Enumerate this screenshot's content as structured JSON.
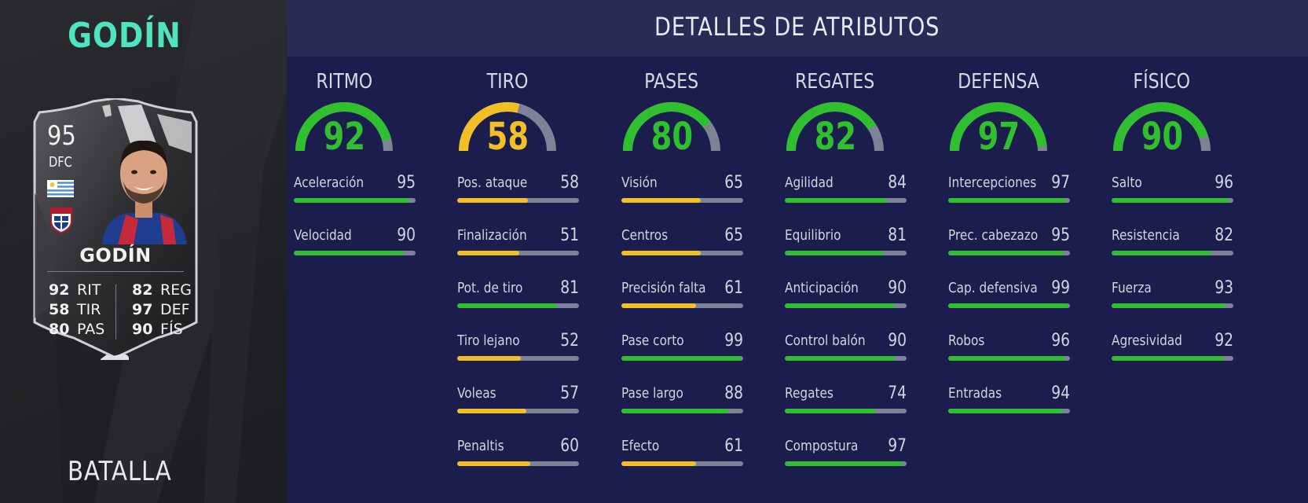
{
  "player": {
    "name": "GODÍN",
    "version": "BATALLA"
  },
  "card": {
    "rating": "95",
    "position": "DFC",
    "name": "GODÍN",
    "stats_left": [
      {
        "value": "92",
        "label": "RIT"
      },
      {
        "value": "58",
        "label": "TIR"
      },
      {
        "value": "80",
        "label": "PAS"
      }
    ],
    "stats_right": [
      {
        "value": "82",
        "label": "REG"
      },
      {
        "value": "97",
        "label": "DEF"
      },
      {
        "value": "90",
        "label": "FÍS"
      }
    ]
  },
  "header": {
    "title": "DETALLES DE ATRIBUTOS"
  },
  "colors": {
    "high": "#2fbf2f",
    "mid": "#f2c026",
    "track": "#7d8296",
    "accent": "#4fe3c0"
  },
  "categories": [
    {
      "name": "RITMO",
      "value": 92,
      "attributes": [
        {
          "label": "Aceleración",
          "value": 95
        },
        {
          "label": "Velocidad",
          "value": 90
        }
      ]
    },
    {
      "name": "TIRO",
      "value": 58,
      "attributes": [
        {
          "label": "Pos. ataque",
          "value": 58
        },
        {
          "label": "Finalización",
          "value": 51
        },
        {
          "label": "Pot. de tiro",
          "value": 81
        },
        {
          "label": "Tiro lejano",
          "value": 52
        },
        {
          "label": "Voleas",
          "value": 57
        },
        {
          "label": "Penaltis",
          "value": 60
        }
      ]
    },
    {
      "name": "PASES",
      "value": 80,
      "attributes": [
        {
          "label": "Visión",
          "value": 65
        },
        {
          "label": "Centros",
          "value": 65
        },
        {
          "label": "Precisión falta",
          "value": 61
        },
        {
          "label": "Pase corto",
          "value": 99
        },
        {
          "label": "Pase largo",
          "value": 88
        },
        {
          "label": "Efecto",
          "value": 61
        }
      ]
    },
    {
      "name": "REGATES",
      "value": 82,
      "attributes": [
        {
          "label": "Agilidad",
          "value": 84
        },
        {
          "label": "Equilibrio",
          "value": 81
        },
        {
          "label": "Anticipación",
          "value": 90
        },
        {
          "label": "Control balón",
          "value": 90
        },
        {
          "label": "Regates",
          "value": 74
        },
        {
          "label": "Compostura",
          "value": 97
        }
      ]
    },
    {
      "name": "DEFENSA",
      "value": 97,
      "attributes": [
        {
          "label": "Intercepciones",
          "value": 97
        },
        {
          "label": "Prec. cabezazo",
          "value": 95
        },
        {
          "label": "Cap. defensiva",
          "value": 99
        },
        {
          "label": "Robos",
          "value": 96
        },
        {
          "label": "Entradas",
          "value": 94
        }
      ]
    },
    {
      "name": "FÍSICO",
      "value": 90,
      "attributes": [
        {
          "label": "Salto",
          "value": 96
        },
        {
          "label": "Resistencia",
          "value": 82
        },
        {
          "label": "Fuerza",
          "value": 93
        },
        {
          "label": "Agresividad",
          "value": 92
        }
      ]
    }
  ]
}
